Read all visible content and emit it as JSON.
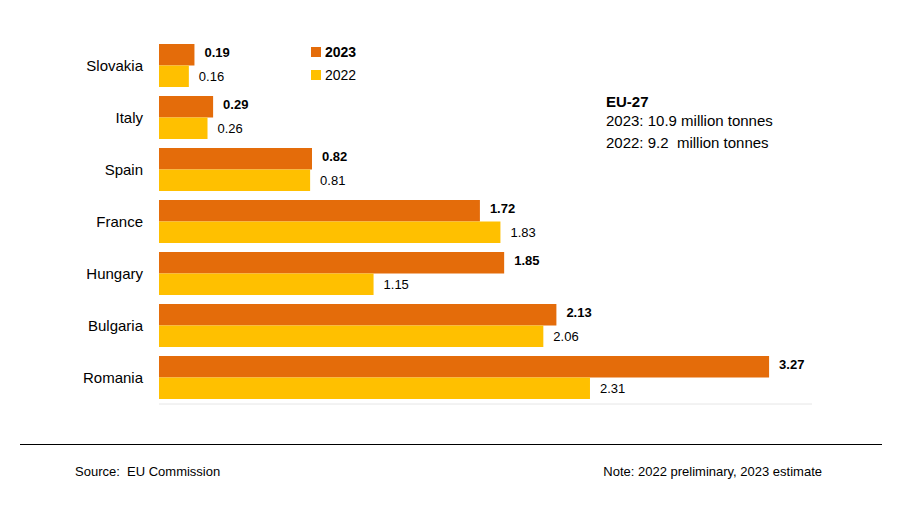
{
  "chart_data": {
    "type": "bar",
    "orientation": "horizontal",
    "categories": [
      "Slovakia",
      "Italy",
      "Spain",
      "France",
      "Hungary",
      "Bulgaria",
      "Romania"
    ],
    "series": [
      {
        "name": "2023",
        "color": "#E46C0A",
        "values": [
          0.19,
          0.29,
          0.82,
          1.72,
          1.85,
          2.13,
          3.27
        ]
      },
      {
        "name": "2022",
        "color": "#FFC000",
        "values": [
          0.16,
          0.26,
          0.81,
          1.83,
          1.15,
          2.06,
          2.31
        ]
      }
    ],
    "xlim": [
      0,
      3.5
    ],
    "tick_labels": false,
    "grid": false,
    "data_labels": true,
    "legend": "top",
    "annotations": [
      "EU-27",
      "2023: 10.9 million tonnes",
      "2022: 9.2  million tonnes",
      "Source:  EU Commission",
      "Note: 2022 preliminary, 2023 estimate"
    ]
  }
}
